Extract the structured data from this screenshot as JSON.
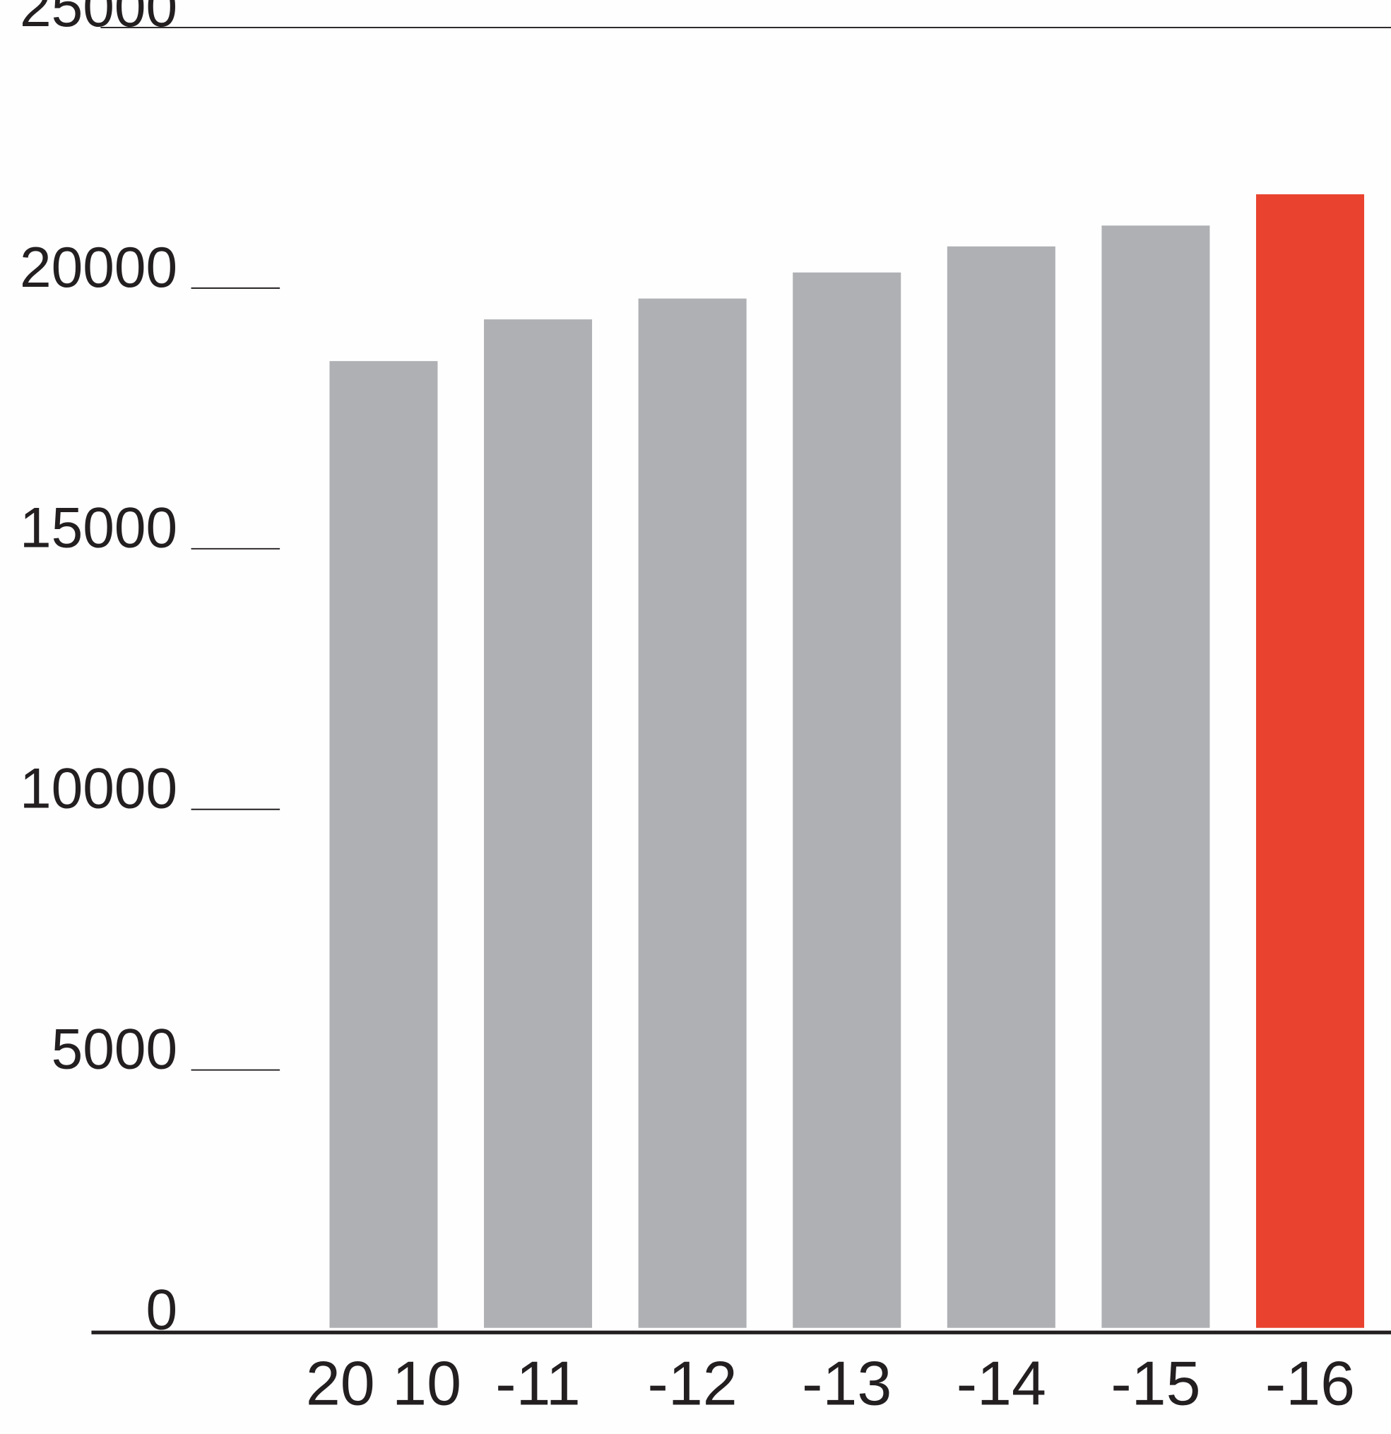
{
  "chart_data": {
    "type": "bar",
    "categories": [
      "20 10",
      "-11",
      "-12",
      "-13",
      "-14",
      "-15",
      "-16"
    ],
    "values": [
      18600,
      19400,
      19800,
      20300,
      20800,
      21200,
      21800
    ],
    "colors": [
      "#aeb0b3",
      "#aeb0b3",
      "#aeb0b3",
      "#aeb0b3",
      "#aeb0b3",
      "#aeb0b3",
      "#e9432f"
    ],
    "ylim": [
      0,
      25000
    ],
    "yticks": [
      0,
      5000,
      10000,
      15000,
      20000,
      25000
    ]
  }
}
